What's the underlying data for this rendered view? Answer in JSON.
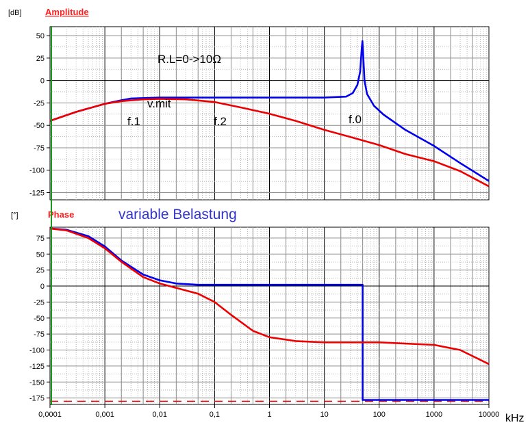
{
  "chart_data": [
    {
      "type": "line",
      "title": "Amplitude",
      "title_color": "#ff2020",
      "ylabel": "[dB]",
      "xlabel": "kHz",
      "x_scale": "log",
      "xlim": [
        0.0001,
        10000
      ],
      "ylim": [
        -133,
        60
      ],
      "y_ticks": [
        50,
        25,
        0,
        -25,
        -50,
        -75,
        -100,
        -125
      ],
      "grid": true,
      "series": [
        {
          "color": "#0000ee",
          "points": [
            [
              0.0001,
              -45
            ],
            [
              0.0003,
              -35
            ],
            [
              0.001,
              -26
            ],
            [
              0.002,
              -22
            ],
            [
              0.003,
              -20
            ],
            [
              0.01,
              -19
            ],
            [
              0.1,
              -19
            ],
            [
              1,
              -19
            ],
            [
              10,
              -19
            ],
            [
              25,
              -18
            ],
            [
              33,
              -14
            ],
            [
              40,
              -5
            ],
            [
              45,
              10
            ],
            [
              48,
              35
            ],
            [
              49.5,
              44
            ],
            [
              51,
              30
            ],
            [
              54,
              0
            ],
            [
              60,
              -15
            ],
            [
              80,
              -28
            ],
            [
              120,
              -38
            ],
            [
              300,
              -55
            ],
            [
              1000,
              -73
            ],
            [
              3000,
              -92
            ],
            [
              10000,
              -112
            ]
          ]
        },
        {
          "color": "#ee0000",
          "points": [
            [
              0.0001,
              -45
            ],
            [
              0.0003,
              -35
            ],
            [
              0.001,
              -26
            ],
            [
              0.002,
              -23
            ],
            [
              0.005,
              -21
            ],
            [
              0.01,
              -20.5
            ],
            [
              0.03,
              -21
            ],
            [
              0.1,
              -24
            ],
            [
              0.3,
              -30
            ],
            [
              1,
              -37
            ],
            [
              3,
              -45
            ],
            [
              10,
              -55
            ],
            [
              30,
              -63
            ],
            [
              100,
              -72
            ],
            [
              300,
              -82
            ],
            [
              1000,
              -90
            ],
            [
              3000,
              -101
            ],
            [
              10000,
              -118
            ]
          ]
        }
      ],
      "annotations": [
        "R.L=0->10Ω",
        "v.mit",
        "f.1",
        "f.2",
        "f.0"
      ]
    },
    {
      "type": "line",
      "title": "Phase",
      "title_color": "#ff2020",
      "ylabel": "[°]",
      "xlabel": "kHz",
      "x_scale": "log",
      "xlim": [
        0.0001,
        10000
      ],
      "ylim": [
        -185,
        92
      ],
      "y_ticks": [
        75,
        50,
        25,
        0,
        -25,
        -50,
        -75,
        -100,
        -125,
        -150,
        -175
      ],
      "x_ticks": [
        "0,0001",
        "0,001",
        "0,01",
        "0,1",
        "1",
        "10",
        "100",
        "1000",
        "10000"
      ],
      "grid": true,
      "reference_line": -180,
      "series": [
        {
          "color": "#0000ee",
          "points": [
            [
              0.0001,
              90
            ],
            [
              0.0002,
              88
            ],
            [
              0.0005,
              78
            ],
            [
              0.001,
              62
            ],
            [
              0.002,
              40
            ],
            [
              0.005,
              18
            ],
            [
              0.01,
              9
            ],
            [
              0.02,
              4
            ],
            [
              0.05,
              2
            ],
            [
              0.1,
              2
            ],
            [
              1,
              2
            ],
            [
              10,
              2
            ],
            [
              49.9,
              2
            ],
            [
              50,
              -178
            ],
            [
              10000,
              -178
            ]
          ]
        },
        {
          "color": "#ee0000",
          "points": [
            [
              0.0001,
              90
            ],
            [
              0.0002,
              87
            ],
            [
              0.0005,
              75
            ],
            [
              0.001,
              59
            ],
            [
              0.002,
              38
            ],
            [
              0.005,
              14
            ],
            [
              0.01,
              4
            ],
            [
              0.02,
              -3
            ],
            [
              0.05,
              -12
            ],
            [
              0.1,
              -25
            ],
            [
              0.2,
              -45
            ],
            [
              0.5,
              -70
            ],
            [
              1,
              -80
            ],
            [
              3,
              -86
            ],
            [
              10,
              -88
            ],
            [
              100,
              -88
            ],
            [
              1000,
              -92
            ],
            [
              3000,
              -100
            ],
            [
              10000,
              -122
            ]
          ]
        }
      ],
      "annotations": [
        "variable Belastung"
      ],
      "annotation_color": "#3333cc"
    }
  ]
}
